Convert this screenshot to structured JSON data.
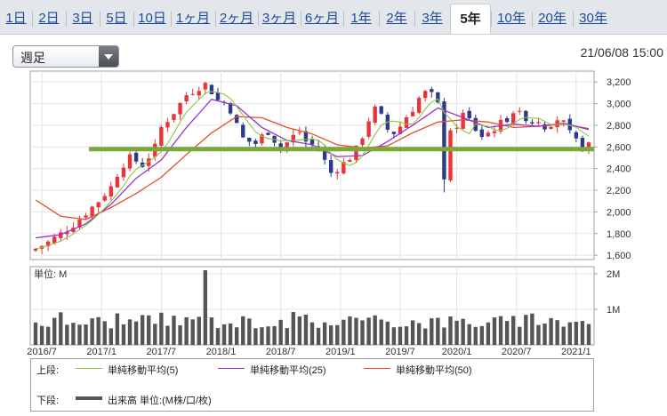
{
  "tabs": [
    "1日",
    "2日",
    "3日",
    "5日",
    "10日",
    "1ヶ月",
    "2ヶ月",
    "3ヶ月",
    "6ヶ月",
    "1年",
    "2年",
    "3年",
    "5年",
    "10年",
    "20年",
    "30年"
  ],
  "active_tab": "5年",
  "period_select": {
    "value": "週足"
  },
  "timestamp": "21/06/08 15:00",
  "legend": {
    "upper_label": "上段:",
    "lower_label": "下段:",
    "sma5": "単純移動平均(5)",
    "sma25": "単純移動平均(25)",
    "sma50": "単純移動平均(50)",
    "volume": "出来高 単位:(M株/口/枚)",
    "colors": {
      "sma5": "#8cc63f",
      "sma25": "#9933cc",
      "sma50": "#e0502a",
      "volume": "#555555"
    }
  },
  "chart_data": [
    {
      "type": "candlestick",
      "x_tick_labels": [
        "2016/7",
        "2017/1",
        "2017/7",
        "2018/1",
        "2018/7",
        "2019/1",
        "2019/7",
        "2020/1",
        "2020/7",
        "2021/1"
      ],
      "y_ticks": [
        1600,
        1800,
        2000,
        2200,
        2400,
        2600,
        2800,
        3000,
        3200
      ],
      "y_tick_labels": [
        "1,600",
        "1,800",
        "2,000",
        "2,200",
        "2,400",
        "2,600",
        "2,800",
        "3,000",
        "3,200"
      ],
      "ylim": [
        1560,
        3300
      ],
      "grid": true,
      "support_line": {
        "value": 2580,
        "color": "#7aa83a"
      },
      "colors": {
        "up": "#e8343a",
        "down": "#2b3a8c"
      },
      "close_path": [
        [
          0,
          1660
        ],
        [
          2,
          1720
        ],
        [
          4,
          1800
        ],
        [
          6,
          1880
        ],
        [
          8,
          1990
        ],
        [
          10,
          2100
        ],
        [
          12,
          2230
        ],
        [
          13,
          2350
        ],
        [
          14,
          2440
        ],
        [
          15,
          2500
        ],
        [
          16,
          2470
        ],
        [
          17,
          2430
        ],
        [
          18,
          2510
        ],
        [
          19,
          2600
        ],
        [
          20,
          2780
        ],
        [
          22,
          2920
        ],
        [
          24,
          3080
        ],
        [
          26,
          3150
        ],
        [
          27,
          3180
        ],
        [
          28,
          3110
        ],
        [
          29,
          3030
        ],
        [
          30,
          3010
        ],
        [
          31,
          2940
        ],
        [
          32,
          2800
        ],
        [
          33,
          2680
        ],
        [
          34,
          2650
        ],
        [
          35,
          2630
        ],
        [
          36,
          2700
        ],
        [
          37,
          2740
        ],
        [
          38,
          2660
        ],
        [
          39,
          2600
        ],
        [
          40,
          2640
        ],
        [
          41,
          2700
        ],
        [
          42,
          2740
        ],
        [
          43,
          2650
        ],
        [
          44,
          2620
        ],
        [
          45,
          2590
        ],
        [
          46,
          2470
        ],
        [
          47,
          2360
        ],
        [
          48,
          2400
        ],
        [
          49,
          2450
        ],
        [
          50,
          2500
        ],
        [
          51,
          2580
        ],
        [
          52,
          2700
        ],
        [
          53,
          2850
        ],
        [
          54,
          2950
        ],
        [
          55,
          2880
        ],
        [
          56,
          2760
        ],
        [
          57,
          2730
        ],
        [
          58,
          2790
        ],
        [
          59,
          2880
        ],
        [
          60,
          2950
        ],
        [
          61,
          3050
        ],
        [
          62,
          3100
        ],
        [
          63,
          3080
        ],
        [
          64,
          2990
        ],
        [
          64.5,
          2260
        ],
        [
          65,
          2650
        ],
        [
          66,
          2720
        ],
        [
          67,
          2800
        ],
        [
          68,
          2900
        ],
        [
          69,
          2850
        ],
        [
          70,
          2760
        ],
        [
          71,
          2700
        ],
        [
          72,
          2730
        ],
        [
          73,
          2770
        ],
        [
          74,
          2820
        ],
        [
          75,
          2860
        ],
        [
          76,
          2930
        ],
        [
          77,
          2900
        ],
        [
          78,
          2870
        ],
        [
          79,
          2830
        ],
        [
          80,
          2850
        ],
        [
          81,
          2790
        ],
        [
          82,
          2820
        ],
        [
          83,
          2860
        ],
        [
          84,
          2820
        ],
        [
          85,
          2720
        ],
        [
          86,
          2650
        ],
        [
          87,
          2600
        ],
        [
          88,
          2610
        ]
      ],
      "sma25_path": [
        [
          0,
          1760
        ],
        [
          4,
          1790
        ],
        [
          8,
          1890
        ],
        [
          12,
          2070
        ],
        [
          16,
          2310
        ],
        [
          20,
          2480
        ],
        [
          24,
          2780
        ],
        [
          28,
          3040
        ],
        [
          32,
          2980
        ],
        [
          36,
          2780
        ],
        [
          40,
          2660
        ],
        [
          44,
          2620
        ],
        [
          48,
          2510
        ],
        [
          52,
          2520
        ],
        [
          56,
          2650
        ],
        [
          60,
          2800
        ],
        [
          64,
          2960
        ],
        [
          68,
          2870
        ],
        [
          72,
          2780
        ],
        [
          76,
          2810
        ],
        [
          80,
          2790
        ],
        [
          84,
          2820
        ],
        [
          88,
          2760
        ]
      ],
      "sma50_path": [
        [
          0,
          2110
        ],
        [
          4,
          1960
        ],
        [
          8,
          1930
        ],
        [
          12,
          2040
        ],
        [
          16,
          2170
        ],
        [
          20,
          2320
        ],
        [
          24,
          2530
        ],
        [
          28,
          2730
        ],
        [
          32,
          2880
        ],
        [
          36,
          2870
        ],
        [
          40,
          2780
        ],
        [
          44,
          2720
        ],
        [
          48,
          2620
        ],
        [
          52,
          2590
        ],
        [
          56,
          2610
        ],
        [
          60,
          2730
        ],
        [
          64,
          2830
        ],
        [
          68,
          2850
        ],
        [
          72,
          2830
        ],
        [
          76,
          2780
        ],
        [
          80,
          2790
        ],
        [
          84,
          2810
        ],
        [
          88,
          2770
        ]
      ]
    },
    {
      "type": "bar",
      "title": "単位: M",
      "y_ticks": [
        1,
        2
      ],
      "y_tick_labels": [
        "1M",
        "2M"
      ],
      "ylim": [
        0,
        2.2
      ],
      "spike": {
        "index": 27,
        "value": 2.1
      },
      "typical_range": [
        0.45,
        0.85
      ]
    }
  ]
}
